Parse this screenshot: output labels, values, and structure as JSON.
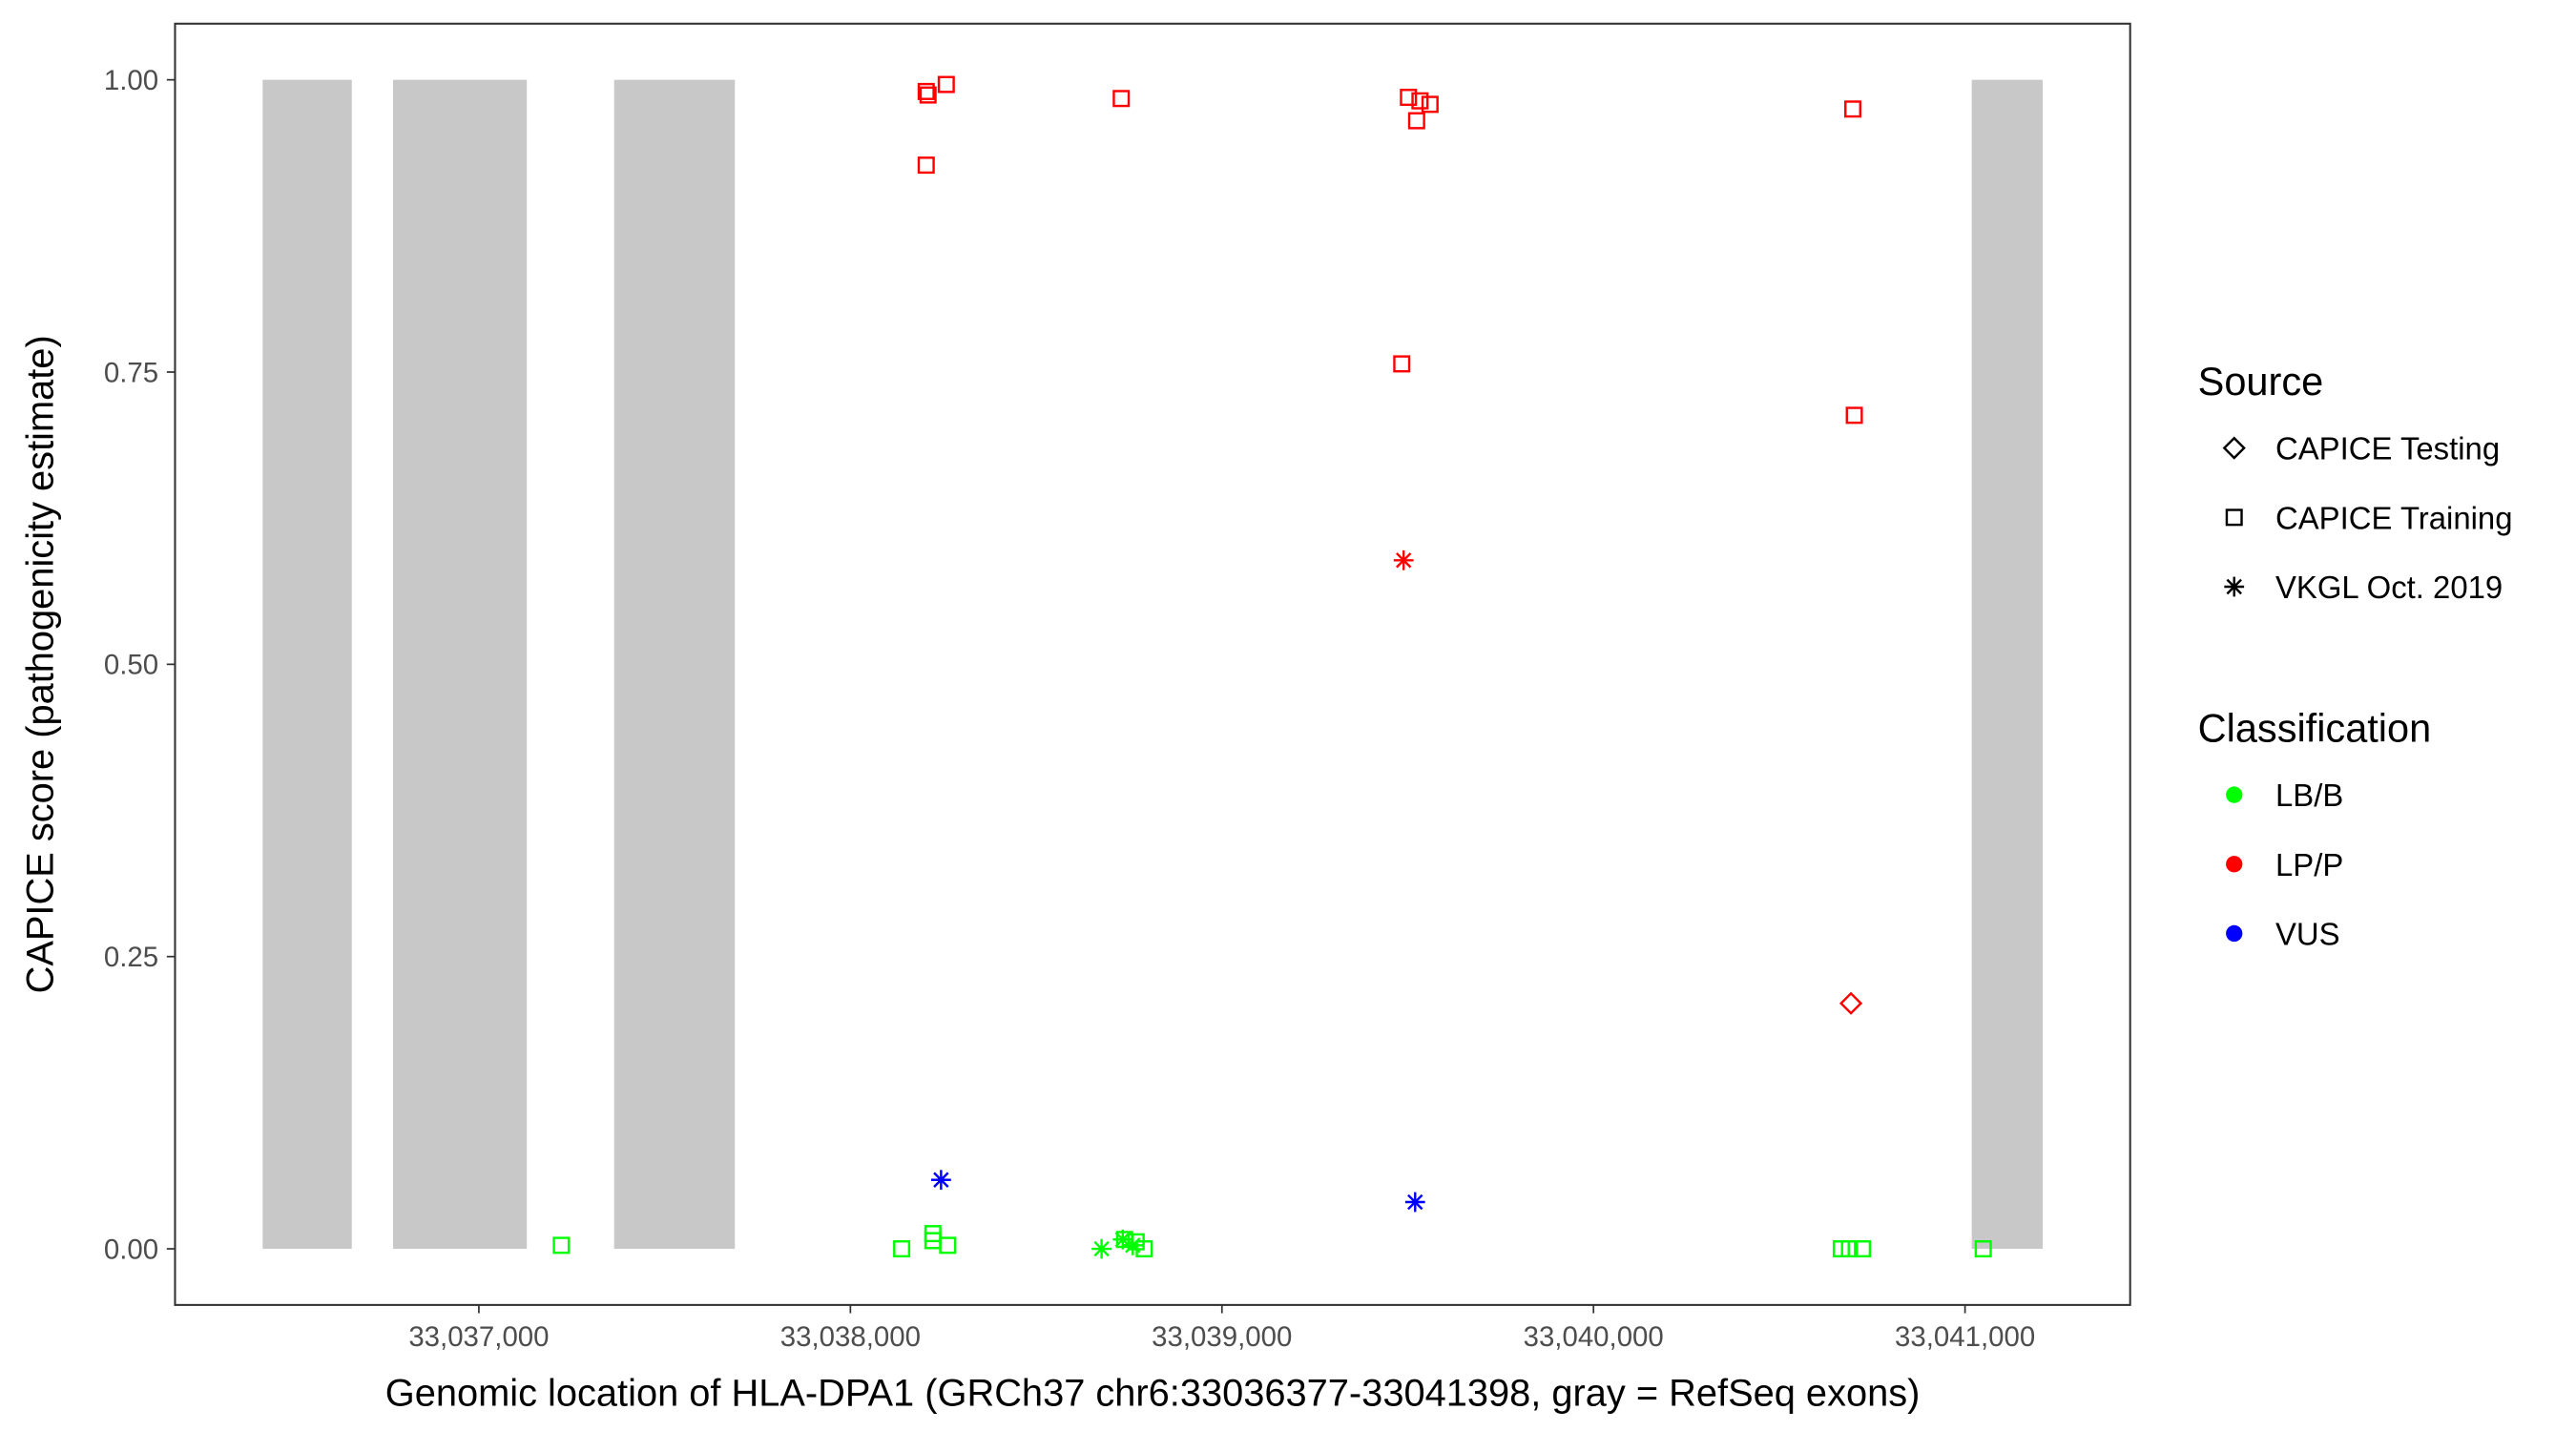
{
  "chart_data": {
    "type": "scatter",
    "xlabel": "Genomic location of HLA-DPA1 (GRCh37 chr6:33036377-33041398, gray = RefSeq exons)",
    "ylabel": "CAPICE score (pathogenicity estimate)",
    "xlim": [
      33036180,
      33041440
    ],
    "ylim": [
      -0.05,
      1.05
    ],
    "x_ticks": [
      33037000,
      33038000,
      33039000,
      33040000,
      33041000
    ],
    "x_tick_labels": [
      "33,037,000",
      "33,038,000",
      "33,039,000",
      "33,040,000",
      "33,041,000"
    ],
    "y_ticks": [
      0,
      0.25,
      0.5,
      0.75,
      1.0
    ],
    "y_tick_labels": [
      "0.00",
      "0.25",
      "0.50",
      "0.75",
      "1.00"
    ],
    "grid": false,
    "exons": [
      [
        33036418,
        33036658
      ],
      [
        33036769,
        33037129
      ],
      [
        33037364,
        33037689
      ],
      [
        33041018,
        33041209
      ]
    ],
    "exon_color": "#c8c8c8",
    "legend_placement": "right",
    "legend": {
      "source_title": "Source",
      "source_items": [
        {
          "label": "CAPICE Testing",
          "shape": "diamond"
        },
        {
          "label": "CAPICE Training",
          "shape": "square"
        },
        {
          "label": "VKGL Oct. 2019",
          "shape": "star"
        }
      ],
      "class_title": "Classification",
      "class_items": [
        {
          "label": "LB/B",
          "color": "#00ff00"
        },
        {
          "label": "LP/P",
          "color": "#ff0000"
        },
        {
          "label": "VUS",
          "color": "#0000ff"
        }
      ]
    },
    "points": [
      {
        "x": 33038204,
        "y": 0.99,
        "source": "CAPICE Training",
        "class": "LP/P"
      },
      {
        "x": 33038209,
        "y": 0.987,
        "source": "CAPICE Training",
        "class": "LP/P"
      },
      {
        "x": 33038258,
        "y": 0.996,
        "source": "CAPICE Training",
        "class": "LP/P"
      },
      {
        "x": 33038204,
        "y": 0.927,
        "source": "CAPICE Training",
        "class": "LP/P"
      },
      {
        "x": 33038729,
        "y": 0.984,
        "source": "CAPICE Training",
        "class": "LP/P"
      },
      {
        "x": 33039502,
        "y": 0.985,
        "source": "CAPICE Training",
        "class": "LP/P"
      },
      {
        "x": 33039533,
        "y": 0.982,
        "source": "CAPICE Training",
        "class": "LP/P"
      },
      {
        "x": 33039560,
        "y": 0.979,
        "source": "CAPICE Training",
        "class": "LP/P"
      },
      {
        "x": 33039524,
        "y": 0.965,
        "source": "CAPICE Training",
        "class": "LP/P"
      },
      {
        "x": 33039484,
        "y": 0.757,
        "source": "CAPICE Training",
        "class": "LP/P"
      },
      {
        "x": 33040698,
        "y": 0.975,
        "source": "CAPICE Training",
        "class": "LP/P"
      },
      {
        "x": 33040702,
        "y": 0.713,
        "source": "CAPICE Training",
        "class": "LP/P"
      },
      {
        "x": 33039489,
        "y": 0.589,
        "source": "VKGL Oct. 2019",
        "class": "LP/P"
      },
      {
        "x": 33040693,
        "y": 0.21,
        "source": "CAPICE Testing",
        "class": "LP/P"
      },
      {
        "x": 33038244,
        "y": 0.059,
        "source": "VKGL Oct. 2019",
        "class": "VUS"
      },
      {
        "x": 33039520,
        "y": 0.04,
        "source": "VKGL Oct. 2019",
        "class": "VUS"
      },
      {
        "x": 33037222,
        "y": 0.003,
        "source": "CAPICE Training",
        "class": "LB/B"
      },
      {
        "x": 33038138,
        "y": 0.0,
        "source": "CAPICE Training",
        "class": "LB/B"
      },
      {
        "x": 33038222,
        "y": 0.013,
        "source": "CAPICE Training",
        "class": "LB/B"
      },
      {
        "x": 33038222,
        "y": 0.007,
        "source": "CAPICE Training",
        "class": "LB/B"
      },
      {
        "x": 33038262,
        "y": 0.003,
        "source": "CAPICE Training",
        "class": "LB/B"
      },
      {
        "x": 33038738,
        "y": 0.008,
        "source": "CAPICE Training",
        "class": "LB/B"
      },
      {
        "x": 33038769,
        "y": 0.006,
        "source": "CAPICE Training",
        "class": "LB/B"
      },
      {
        "x": 33038791,
        "y": 0.0,
        "source": "CAPICE Training",
        "class": "LB/B"
      },
      {
        "x": 33040667,
        "y": 0.0,
        "source": "CAPICE Training",
        "class": "LB/B"
      },
      {
        "x": 33040689,
        "y": 0.0,
        "source": "CAPICE Training",
        "class": "LB/B"
      },
      {
        "x": 33040724,
        "y": 0.0,
        "source": "CAPICE Training",
        "class": "LB/B"
      },
      {
        "x": 33041049,
        "y": 0.0,
        "source": "CAPICE Training",
        "class": "LB/B"
      },
      {
        "x": 33038676,
        "y": 0.0,
        "source": "VKGL Oct. 2019",
        "class": "LB/B"
      },
      {
        "x": 33038733,
        "y": 0.008,
        "source": "VKGL Oct. 2019",
        "class": "LB/B"
      },
      {
        "x": 33038760,
        "y": 0.003,
        "source": "VKGL Oct. 2019",
        "class": "LB/B"
      }
    ]
  }
}
